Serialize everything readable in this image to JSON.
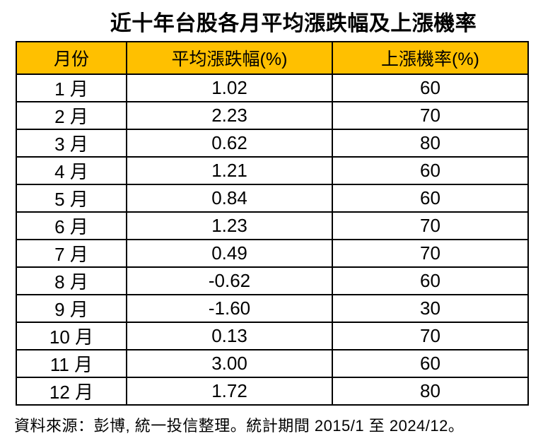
{
  "title": "近十年台股各月平均漲跌幅及上漲機率",
  "table": {
    "headers": [
      "月份",
      "平均漲跌幅(%)",
      "上漲機率(%)"
    ],
    "rows": [
      [
        "1 月",
        "1.02",
        "60"
      ],
      [
        "2 月",
        "2.23",
        "70"
      ],
      [
        "3 月",
        "0.62",
        "80"
      ],
      [
        "4 月",
        "1.21",
        "60"
      ],
      [
        "5 月",
        "0.84",
        "60"
      ],
      [
        "6 月",
        "1.23",
        "70"
      ],
      [
        "7 月",
        "0.49",
        "70"
      ],
      [
        "8 月",
        "-0.62",
        "60"
      ],
      [
        "9 月",
        "-1.60",
        "30"
      ],
      [
        "10 月",
        "0.13",
        "70"
      ],
      [
        "11 月",
        "3.00",
        "60"
      ],
      [
        "12 月",
        "1.72",
        "80"
      ]
    ]
  },
  "footer": {
    "source_note": "資料來源：彭博, 統一投信整理。統計期間 2015/1 至 2024/12。"
  },
  "colors": {
    "header_bg": "#FFC000",
    "border": "#000000",
    "text": "#000000",
    "background": "#FFFFFF"
  },
  "chart_data": {
    "type": "table",
    "title": "近十年台股各月平均漲跌幅及上漲機率",
    "columns": [
      "月份",
      "平均漲跌幅(%)",
      "上漲機率(%)"
    ],
    "categories": [
      "1月",
      "2月",
      "3月",
      "4月",
      "5月",
      "6月",
      "7月",
      "8月",
      "9月",
      "10月",
      "11月",
      "12月"
    ],
    "series": [
      {
        "name": "平均漲跌幅(%)",
        "values": [
          1.02,
          2.23,
          0.62,
          1.21,
          0.84,
          1.23,
          0.49,
          -0.62,
          -1.6,
          0.13,
          3.0,
          1.72
        ]
      },
      {
        "name": "上漲機率(%)",
        "values": [
          60,
          70,
          80,
          60,
          60,
          70,
          70,
          60,
          30,
          70,
          60,
          80
        ]
      }
    ],
    "annotations": [
      "資料來源：彭博, 統一投信整理。統計期間 2015/1 至 2024/12。"
    ],
    "layout": {
      "header_background": "#FFC000",
      "grid": "full-borders",
      "legend_position": "none"
    }
  }
}
